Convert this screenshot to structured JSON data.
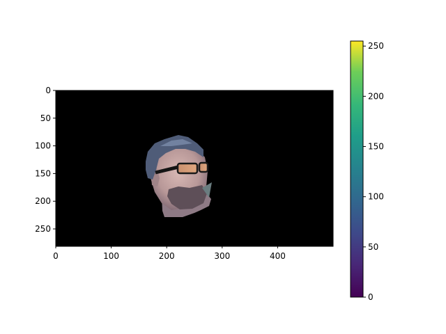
{
  "chart_data": [
    {
      "type": "heatmap",
      "title": "",
      "xlabel": "",
      "ylabel": "",
      "xlim": [
        0,
        500
      ],
      "ylim": [
        280,
        0
      ],
      "x_ticks": [
        0,
        100,
        200,
        300,
        400
      ],
      "y_ticks": [
        0,
        50,
        100,
        150,
        200,
        250
      ],
      "grid": false,
      "content": "masked face cutout on black background",
      "colors": {
        "background": "#000000"
      }
    },
    {
      "type": "colorbar",
      "colormap": "viridis",
      "range": [
        0,
        255
      ],
      "ticks": [
        0,
        50,
        100,
        150,
        200,
        250
      ]
    }
  ]
}
